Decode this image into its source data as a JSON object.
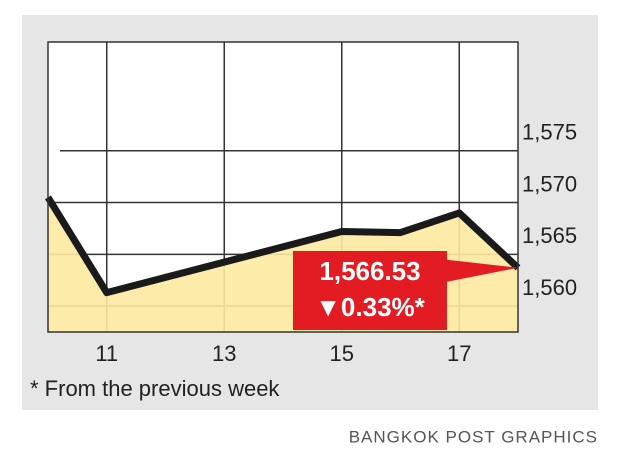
{
  "chart_data": {
    "type": "line",
    "x": [
      10,
      11,
      15,
      16,
      17,
      18
    ],
    "values": [
      1570.5,
      1561.3,
      1567.2,
      1567.1,
      1569.0,
      1563.7
    ],
    "color": "#1a1a1a",
    "fill": "#fde9a0",
    "xlim": [
      10,
      18
    ],
    "xticks": [
      11,
      13,
      15,
      17
    ],
    "ylim": [
      1557.5,
      1585.5
    ],
    "yticks": [
      {
        "value": 1560,
        "label": "1,560"
      },
      {
        "value": 1565,
        "label": "1,565"
      },
      {
        "value": 1570,
        "label": "1,570"
      },
      {
        "value": 1575,
        "label": "1,575"
      }
    ],
    "grid": true,
    "annotation": {
      "value": "1,566.53",
      "change": "▼0.33%*"
    },
    "footnote": "* From the previous week",
    "source": "BANGKOK POST GRAPHICS"
  }
}
